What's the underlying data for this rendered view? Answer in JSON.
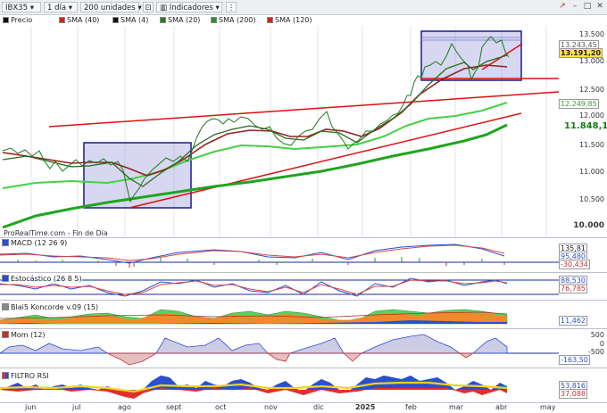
{
  "toolbar": {
    "symbol": "IBX35",
    "period": "1 día",
    "units": "200 unidades",
    "indicators": "Indicadores",
    "icons": [
      "pin-icon",
      "grid-icon",
      "more-icon",
      "chart-icon",
      "minimize-icon",
      "maximize-icon",
      "close-icon"
    ]
  },
  "legend": {
    "price": "Precio",
    "sma40": "SMA (40)",
    "sma4": "SMA (4)",
    "sma20": "SMA (20)",
    "sma200": "SMA (200)",
    "sma120": "SMA (120)",
    "colors": {
      "sma40": "#d61f1f",
      "sma4": "#111111",
      "sma20": "#2a7a1f",
      "sma200": "#2b8f2b",
      "sma120": "#d61f1f"
    }
  },
  "price_axis": [
    "13.500",
    "13.243,45",
    "13.191,20",
    "13.000",
    "12.500",
    "12.249,85",
    "12.000",
    "11.848,14",
    "11.500",
    "11.000",
    "10.500",
    "10.000"
  ],
  "source": "ProRealTime.com - Fin de Día",
  "panels": {
    "macd": {
      "title": "MACD (12 26 9)",
      "values": [
        "135,81",
        "95,480",
        "-30,434"
      ]
    },
    "stoch": {
      "title": "Estocástico (26 8 5)",
      "values": [
        "88,530",
        "76,785"
      ]
    },
    "blai": {
      "title": "Blai5 Koncorde v.09 (15)",
      "values": [
        "11,462"
      ]
    },
    "mom": {
      "title": "Mom (12)",
      "values": [
        "500",
        "0",
        "-500",
        "-163,50"
      ]
    },
    "rsi": {
      "title": "FILTRO RSI",
      "values": [
        "53,816",
        "37,088"
      ]
    }
  },
  "x_axis": [
    "jun",
    "jul",
    "ago",
    "sept",
    "oct",
    "nov",
    "dic",
    "2025",
    "feb",
    "mar",
    "abr",
    "may"
  ]
}
